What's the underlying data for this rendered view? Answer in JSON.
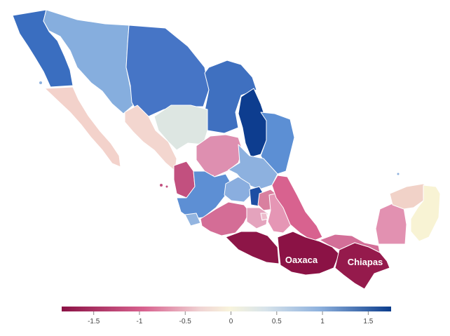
{
  "map": {
    "callouts": {
      "oaxaca": "Oaxaca",
      "chiapas": "Chiapas"
    },
    "legend": {
      "ticks": [
        {
          "value": -1.5,
          "label": "-1.5"
        },
        {
          "value": -1,
          "label": "-1"
        },
        {
          "value": -0.5,
          "label": "-0.5"
        },
        {
          "value": 0,
          "label": "0"
        },
        {
          "value": 0.5,
          "label": "0.5"
        },
        {
          "value": 1,
          "label": "1"
        },
        {
          "value": 1.5,
          "label": "1.5"
        }
      ],
      "range": [
        -1.85,
        1.75
      ],
      "colors": {
        "most_negative": "#8b1245",
        "negative": "#d8628f",
        "slightly_negative": "#f0d3d3",
        "neutral": "#f8f4dc",
        "slightly_positive": "#d7e3ea",
        "positive": "#8fb2de",
        "most_positive": "#0a3c8c"
      }
    },
    "states": {
      "baja-california": {
        "value": 1.3,
        "color": "#3a6ec0"
      },
      "baja-california-sur": {
        "value": -0.3,
        "color": "#f3d2cb"
      },
      "sonora": {
        "value": 0.8,
        "color": "#86aede"
      },
      "chihuahua": {
        "value": 1.2,
        "color": "#4675c6"
      },
      "coahuila": {
        "value": 1.25,
        "color": "#3f70c0"
      },
      "nuevo-leon": {
        "value": 1.7,
        "color": "#0d3d8f"
      },
      "tamaulipas": {
        "value": 1.0,
        "color": "#5c8fd4"
      },
      "sinaloa": {
        "value": -0.25,
        "color": "#f3d6cf"
      },
      "durango": {
        "value": 0.2,
        "color": "#dde6e2"
      },
      "zacatecas": {
        "value": -0.7,
        "color": "#de8fb0"
      },
      "san-luis-potosi": {
        "value": 0.8,
        "color": "#8db1df"
      },
      "nayarit": {
        "value": -1.1,
        "color": "#c2507f"
      },
      "aguascalientes": {
        "value": -0.6,
        "color": "#e2a0bc"
      },
      "jalisco": {
        "value": 1.0,
        "color": "#5d8fd4"
      },
      "guanajuato": {
        "value": 0.8,
        "color": "#8aaedf"
      },
      "queretaro": {
        "value": 1.6,
        "color": "#1d4ea3"
      },
      "hidalgo": {
        "value": -0.8,
        "color": "#d9809f"
      },
      "colima": {
        "value": 0.7,
        "color": "#93b5e0"
      },
      "michoacan": {
        "value": -0.9,
        "color": "#d46d96"
      },
      "mexico-state": {
        "value": -0.6,
        "color": "#e4a3bd"
      },
      "cdmx": {
        "value": -0.5,
        "color": "#ecbccc"
      },
      "puebla": {
        "value": -0.75,
        "color": "#e596b5"
      },
      "veracruz": {
        "value": -0.95,
        "color": "#d8628f"
      },
      "guerrero": {
        "value": -1.7,
        "color": "#8d1547"
      },
      "oaxaca": {
        "value": -1.75,
        "color": "#8b1245"
      },
      "chiapas": {
        "value": -1.65,
        "color": "#951a4c"
      },
      "tabasco": {
        "value": -1.0,
        "color": "#d36f98"
      },
      "campeche": {
        "value": -0.8,
        "color": "#e291b1"
      },
      "yucatan": {
        "value": -0.3,
        "color": "#f1d2c8"
      },
      "quintana-roo": {
        "value": 0.05,
        "color": "#f8f3d4"
      }
    }
  }
}
